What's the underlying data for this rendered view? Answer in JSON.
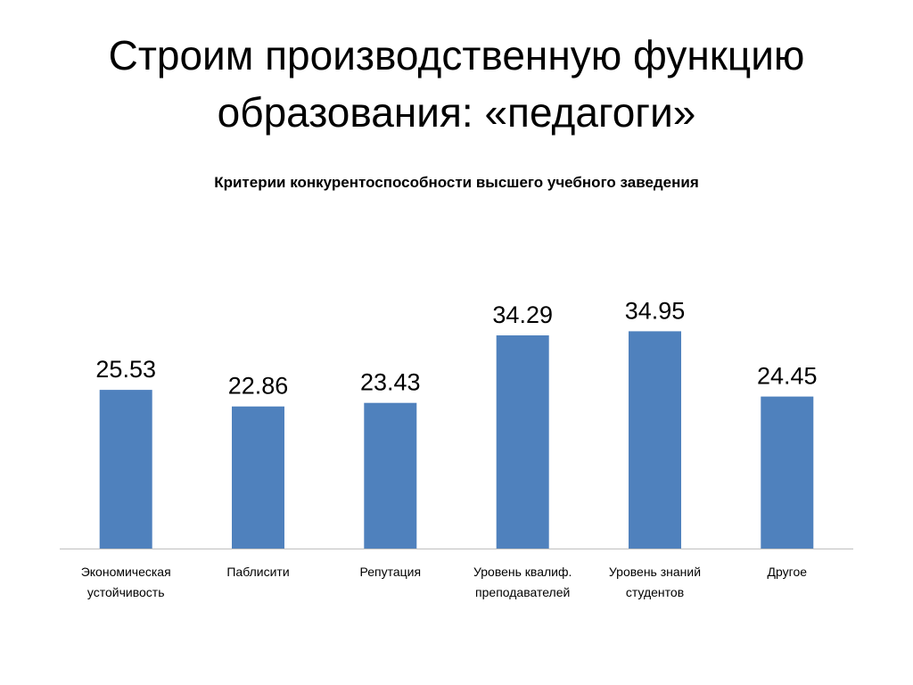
{
  "slide": {
    "title_line1": "Строим производственную функцию",
    "title_line2": "образования: «педагоги»"
  },
  "chart_data": {
    "type": "bar",
    "title": "Критерии конкурентоспособности высшего учебного заведения",
    "categories": [
      [
        "Экономическая",
        "устойчивость"
      ],
      [
        "Паблисити"
      ],
      [
        "Репутация"
      ],
      [
        "Уровень квалиф.",
        "преподавателей"
      ],
      [
        "Уровень знаний",
        "студентов"
      ],
      [
        "Другое"
      ]
    ],
    "values": [
      25.53,
      22.86,
      23.43,
      34.29,
      34.95,
      24.45
    ],
    "value_labels": [
      "25.53",
      "22.86",
      "23.43",
      "34.29",
      "34.95",
      "24.45"
    ],
    "ylim": [
      0,
      35
    ],
    "grid": false,
    "legend": "none",
    "bar_color": "#4F81BD",
    "axis_color": "#BFBFBF"
  }
}
